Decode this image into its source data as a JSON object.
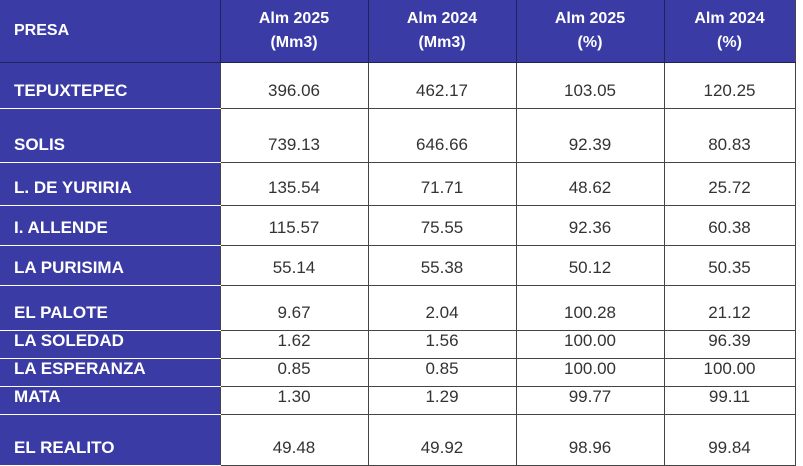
{
  "table": {
    "header": [
      [
        "PRESA"
      ],
      [
        "Alm 2025",
        "(Mm3)"
      ],
      [
        "Alm 2024",
        "(Mm3)"
      ],
      [
        "Alm 2025",
        "(%)"
      ],
      [
        "Alm 2024",
        "(%)"
      ]
    ],
    "rows": [
      [
        "TEPUXTEPEC",
        "396.06",
        "462.17",
        "103.05",
        "120.25"
      ],
      [
        "SOLIS",
        "739.13",
        "646.66",
        "92.39",
        "80.83"
      ],
      [
        "L. DE YURIRIA",
        "135.54",
        "71.71",
        "48.62",
        "25.72"
      ],
      [
        "I. ALLENDE",
        "115.57",
        "75.55",
        "92.36",
        "60.38"
      ],
      [
        "LA PURISIMA",
        "55.14",
        "55.38",
        "50.12",
        "50.35"
      ],
      [
        "EL PALOTE",
        "9.67",
        "2.04",
        "100.28",
        "21.12"
      ],
      [
        "LA SOLEDAD",
        "1.62",
        "1.56",
        "100.00",
        "96.39"
      ],
      [
        "LA ESPERANZA",
        "0.85",
        "0.85",
        "100.00",
        "100.00"
      ],
      [
        "MATA",
        "1.30",
        "1.29",
        "99.77",
        "99.11"
      ],
      [
        "EL REALITO",
        "49.48",
        "49.92",
        "98.96",
        "99.84"
      ]
    ]
  }
}
